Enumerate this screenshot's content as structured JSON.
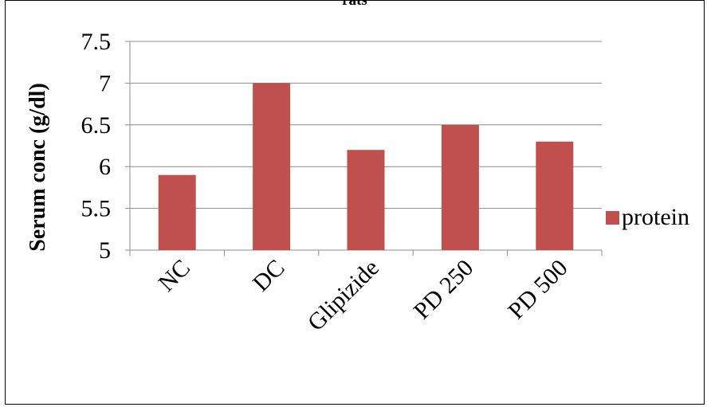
{
  "chart_data": {
    "type": "bar",
    "title": "rats",
    "ylabel": "Serum conc (g/dl)",
    "xlabel": "",
    "categories": [
      "NC",
      "DC",
      "Glipizide",
      "PD 250",
      "PD 500"
    ],
    "series": [
      {
        "name": "protein",
        "values": [
          5.9,
          7.0,
          6.2,
          6.5,
          6.3
        ],
        "color": "#c0504d"
      }
    ],
    "ylim": [
      5,
      7.5
    ],
    "yticks": [
      "5",
      "5.5",
      "6",
      "6.5",
      "7",
      "7.5"
    ],
    "grid": true,
    "legend_position": "right"
  }
}
